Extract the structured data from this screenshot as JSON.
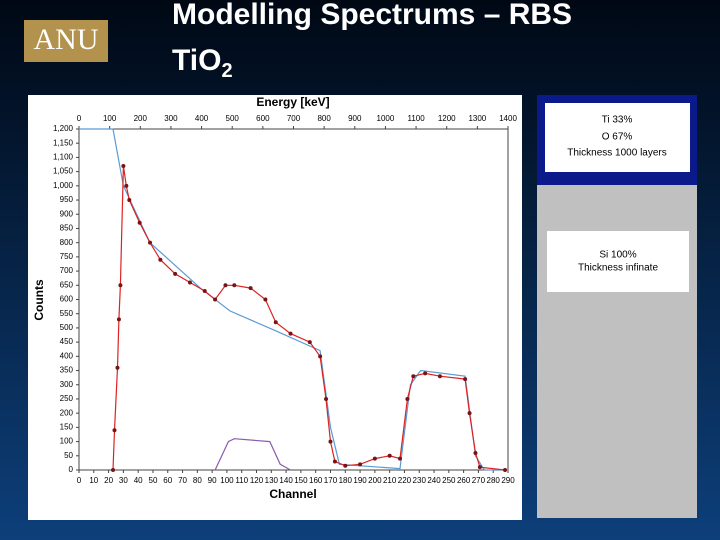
{
  "slide": {
    "logo": "ANU",
    "title_line1": "Modelling Spectrums – RBS",
    "title_line2": "TiO",
    "title_sub": "2",
    "panels": [
      [
        "Ti 33%",
        "O 67%",
        "Thickness 1000 layers"
      ],
      [
        "Si 100%",
        "Thickness infinate"
      ]
    ]
  },
  "chart_data": {
    "type": "line",
    "xlabel": "Channel",
    "ylabel": "Counts",
    "x2label": "Energy [keV]",
    "xlim": [
      0,
      290
    ],
    "xticks": [
      0,
      10,
      20,
      30,
      40,
      50,
      60,
      70,
      80,
      90,
      100,
      110,
      120,
      130,
      140,
      150,
      160,
      170,
      180,
      190,
      200,
      210,
      220,
      230,
      240,
      250,
      260,
      270,
      280,
      290
    ],
    "x2lim": [
      0,
      1400
    ],
    "x2ticks": [
      0,
      100,
      200,
      300,
      400,
      500,
      600,
      700,
      800,
      900,
      1000,
      1100,
      1200,
      1300,
      1400
    ],
    "ylim": [
      0,
      1200
    ],
    "yticks": [
      0,
      50,
      100,
      150,
      200,
      250,
      300,
      350,
      400,
      450,
      500,
      550,
      600,
      650,
      700,
      750,
      800,
      850,
      900,
      950,
      {
        "value": 1000,
        "label": "1,000"
      },
      {
        "value": 1050,
        "label": "1,050"
      },
      {
        "value": 1100,
        "label": "1,100"
      },
      {
        "value": 1150,
        "label": "1,150"
      },
      {
        "value": 1200,
        "label": "1,200"
      }
    ],
    "series": [
      {
        "color": "#7a1414",
        "markers": true,
        "x": [
          23,
          24,
          26,
          27,
          28,
          30,
          32,
          34,
          41,
          48,
          55,
          65,
          75,
          85,
          92,
          99,
          105,
          116,
          126,
          133,
          143,
          156,
          163,
          167,
          170,
          173,
          180,
          190,
          200,
          210,
          217,
          222,
          226,
          234,
          244,
          261,
          264,
          268,
          271,
          288
        ],
        "values": [
          0,
          140,
          360,
          530,
          650,
          1070,
          1000,
          950,
          870,
          800,
          740,
          690,
          660,
          630,
          600,
          650,
          650,
          640,
          600,
          520,
          480,
          450,
          400,
          250,
          100,
          30,
          15,
          20,
          40,
          50,
          40,
          250,
          330,
          340,
          330,
          320,
          200,
          60,
          10,
          0
        ]
      },
      {
        "color": "#dd2222",
        "markers": false,
        "x": [
          23,
          24,
          26,
          27,
          28,
          30,
          32,
          34,
          41,
          48,
          55,
          65,
          75,
          85,
          92,
          99,
          105,
          116,
          126,
          133,
          143,
          156,
          163,
          167,
          170,
          173,
          180,
          190,
          200,
          210,
          217,
          222,
          226,
          234,
          244,
          261,
          264,
          268,
          271,
          288
        ],
        "values": [
          0,
          140,
          360,
          530,
          650,
          1070,
          1000,
          950,
          870,
          800,
          740,
          690,
          660,
          630,
          600,
          650,
          650,
          640,
          600,
          520,
          480,
          450,
          400,
          250,
          100,
          30,
          15,
          20,
          40,
          50,
          40,
          250,
          330,
          340,
          330,
          320,
          200,
          60,
          10,
          0
        ]
      },
      {
        "color": "#5a9bd5",
        "markers": false,
        "x": [
          0,
          23,
          30,
          48,
          82,
          102,
          133,
          163,
          170,
          176,
          217,
          224,
          231,
          261,
          268,
          274,
          290
        ],
        "values": [
          1200,
          1200,
          1000,
          800,
          640,
          560,
          490,
          420,
          150,
          20,
          5,
          300,
          350,
          330,
          50,
          0,
          0
        ]
      },
      {
        "color": "#8a5ab0",
        "markers": false,
        "x": [
          92,
          101,
          105,
          129,
          136,
          143
        ],
        "values": [
          0,
          100,
          110,
          100,
          20,
          0
        ]
      }
    ]
  }
}
